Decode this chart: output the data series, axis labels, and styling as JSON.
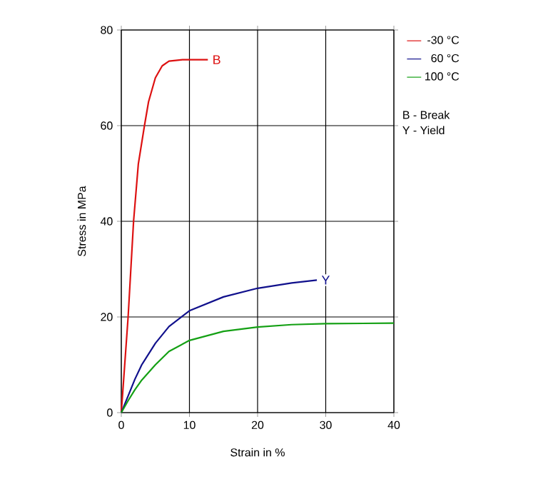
{
  "chart_data": {
    "type": "line",
    "xlabel": "Strain in %",
    "ylabel": "Stress in MPa",
    "xlim": [
      0,
      40
    ],
    "ylim": [
      0,
      80
    ],
    "xticks": [
      0,
      10,
      20,
      30,
      40
    ],
    "yticks": [
      0,
      20,
      40,
      60,
      80
    ],
    "grid": true,
    "legend": "top right",
    "marker": "none",
    "line_style": "solid",
    "series": [
      {
        "name": "-30 °C",
        "color": "#dd1111",
        "x": [
          0,
          0.5,
          1,
          1.8,
          2.5,
          3.4,
          4,
          5,
          6,
          7,
          9,
          12.7
        ],
        "values": [
          0,
          10,
          20,
          40,
          52,
          60,
          65,
          70,
          72.5,
          73.5,
          73.8,
          73.8
        ]
      },
      {
        "name": "60 °C",
        "color": "#10108c",
        "x": [
          0,
          1,
          2,
          3,
          5,
          7,
          10,
          15,
          20,
          25,
          28.7
        ],
        "values": [
          0,
          3.5,
          7,
          10,
          14.5,
          18,
          21.3,
          24.2,
          26,
          27.1,
          27.7
        ]
      },
      {
        "name": "100 °C",
        "color": "#14a014",
        "x": [
          0,
          1,
          2,
          3,
          5,
          7,
          10,
          15,
          20,
          25,
          30,
          40
        ],
        "values": [
          0,
          2.5,
          4.8,
          6.8,
          10,
          12.8,
          15.1,
          17,
          17.9,
          18.4,
          18.6,
          18.7
        ]
      }
    ],
    "annotations": [
      {
        "text": "B",
        "x": 12.7,
        "y": 73.8
      },
      {
        "text": "Y",
        "x": 28.7,
        "y": 27.7
      },
      "B - Break",
      "Y - Yield"
    ]
  }
}
